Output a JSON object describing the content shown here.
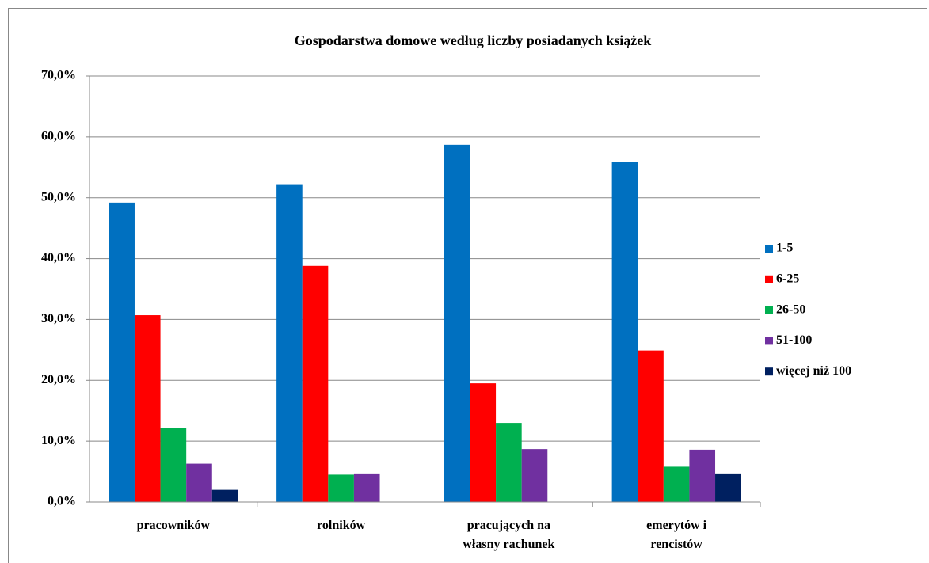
{
  "chart_data": {
    "type": "bar",
    "title": "Gospodarstwa domowe według liczby posiadanych książek",
    "categories": [
      "pracowników",
      "rolników",
      "pracujących na\nwłasny rachunek",
      "emerytów i\nrencistów"
    ],
    "series": [
      {
        "name": "1-5",
        "color": "#0070c0",
        "values": [
          49.2,
          52.1,
          58.7,
          55.9
        ]
      },
      {
        "name": "6-25",
        "color": "#ff0000",
        "values": [
          30.7,
          38.8,
          19.5,
          24.9
        ]
      },
      {
        "name": "26-50",
        "color": "#00b050",
        "values": [
          12.1,
          4.5,
          13.0,
          5.8
        ]
      },
      {
        "name": "51-100",
        "color": "#7030a0",
        "values": [
          6.3,
          4.7,
          8.7,
          8.6
        ]
      },
      {
        "name": "więcej niż 100",
        "color": "#002060",
        "values": [
          2.0,
          0,
          0,
          4.7
        ]
      }
    ],
    "ylim": [
      0,
      70
    ],
    "yticks": [
      {
        "value": 0,
        "label": "0,0%"
      },
      {
        "value": 10,
        "label": "10,0%"
      },
      {
        "value": 20,
        "label": "20,0%"
      },
      {
        "value": 30,
        "label": "30,0%"
      },
      {
        "value": 40,
        "label": "40,0%"
      },
      {
        "value": 50,
        "label": "50,0%"
      },
      {
        "value": 60,
        "label": "60,0%"
      },
      {
        "value": 70,
        "label": "70,0%"
      }
    ],
    "grid": true,
    "legend": "right"
  }
}
